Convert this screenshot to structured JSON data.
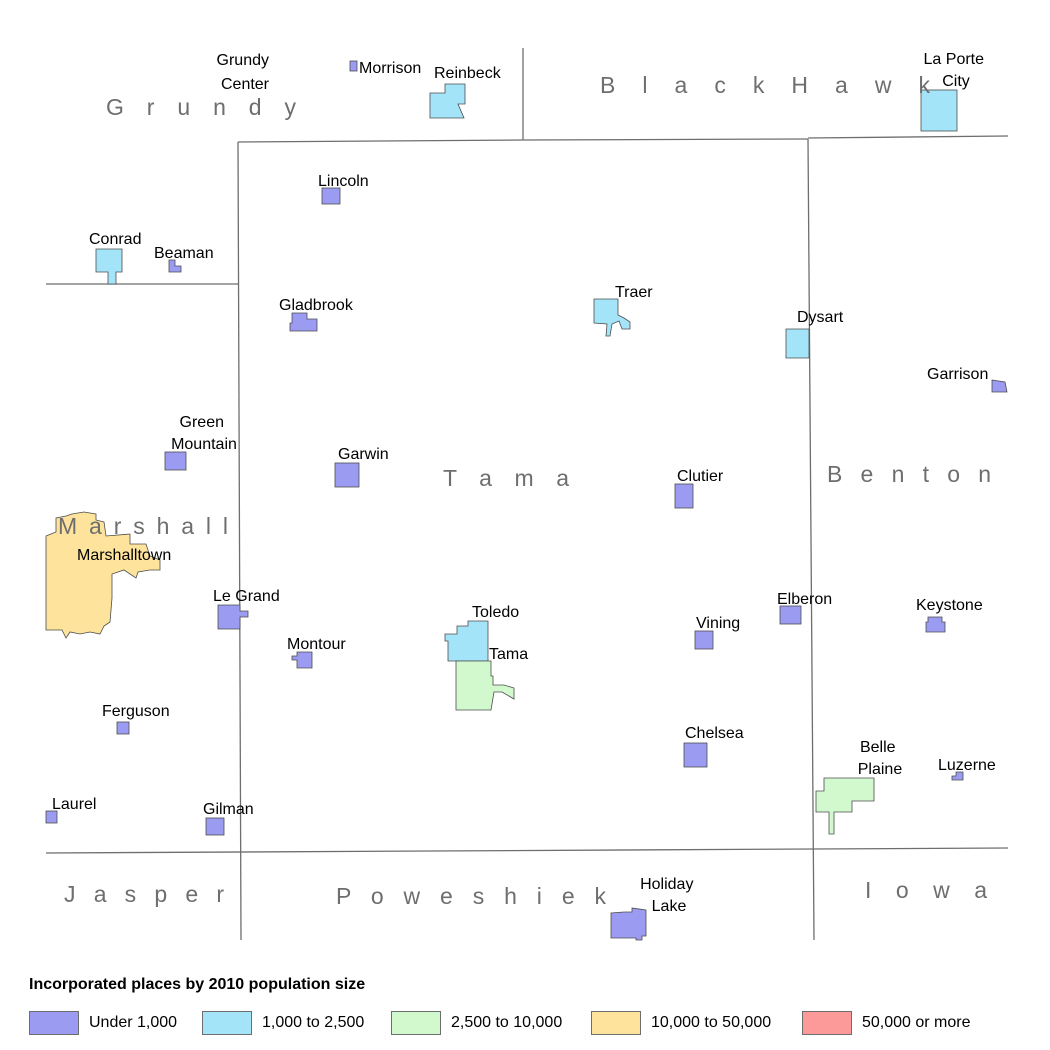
{
  "colors": {
    "boundary": "#6e6e6e",
    "under_1000": "#9b9bf2",
    "1000_2500": "#a4e4f8",
    "2500_10000": "#d2f8cd",
    "10000_50000": "#fde39c",
    "50000_plus": "#fb9a99"
  },
  "counties": {
    "grundy": "G r u n d y",
    "black_hawk": "B l a c k   H a w k",
    "tama": "T a m a",
    "benton": "B e n t o n",
    "marshall": "M a r s h a l l",
    "jasper": "J a s p e r",
    "poweshiek": "P o w e s h i e k",
    "iowa": "I o w a"
  },
  "places": {
    "grundy_center": [
      "Grundy",
      "Center"
    ],
    "morrison": "Morrison",
    "reinbeck": "Reinbeck",
    "la_porte_city": [
      "La Porte",
      "City"
    ],
    "lincoln": "Lincoln",
    "conrad": "Conrad",
    "beaman": "Beaman",
    "gladbrook": "Gladbrook",
    "traer": "Traer",
    "dysart": "Dysart",
    "garrison": "Garrison",
    "green_mountain": [
      "Green",
      "Mountain"
    ],
    "garwin": "Garwin",
    "clutier": "Clutier",
    "marshalltown": "Marshalltown",
    "le_grand": "Le Grand",
    "toledo": "Toledo",
    "tama": "Tama",
    "elberon": "Elberon",
    "vining": "Vining",
    "keystone": "Keystone",
    "montour": "Montour",
    "ferguson": "Ferguson",
    "chelsea": "Chelsea",
    "belle_plaine": [
      "Belle",
      "Plaine"
    ],
    "luzerne": "Luzerne",
    "laurel": "Laurel",
    "gilman": "Gilman",
    "holiday_lake": [
      "Holiday",
      "Lake"
    ]
  },
  "legend": {
    "title": "Incorporated places by 2010 population size",
    "items": [
      {
        "label": "Under 1,000",
        "color": "#9b9bf2"
      },
      {
        "label": "1,000 to 2,500",
        "color": "#a4e4f8"
      },
      {
        "label": "2,500 to 10,000",
        "color": "#d2f8cd"
      },
      {
        "label": "10,000 to 50,000",
        "color": "#fde39c"
      },
      {
        "label": "50,000 or more",
        "color": "#fb9a99"
      }
    ]
  }
}
